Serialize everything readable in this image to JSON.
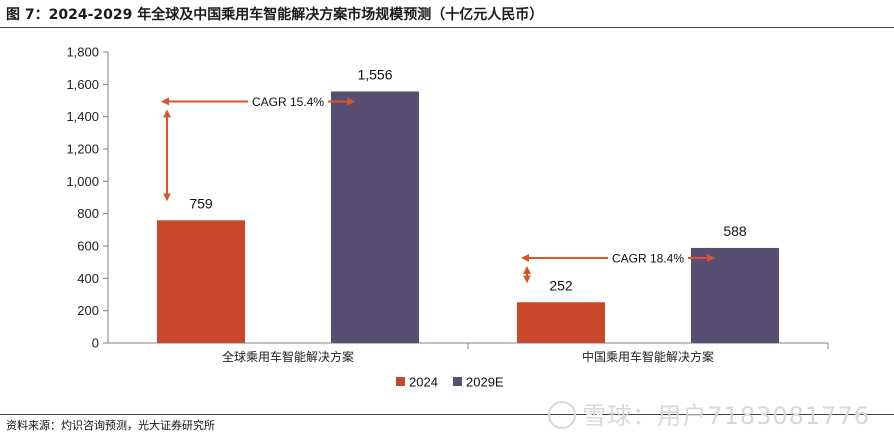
{
  "header": {
    "title": "图 7：2024-2029 年全球及中国乘用车智能解决方案市场规模预测（十亿元人民币）"
  },
  "footer": {
    "source": "资料来源：灼识咨询预测，光大证券研究所",
    "watermark": "雪球：用户7183081776"
  },
  "chart_data": {
    "type": "bar",
    "categories": [
      "全球乘用车智能解决方案",
      "中国乘用车智能解决方案"
    ],
    "series": [
      {
        "name": "2024",
        "values": [
          759,
          252
        ],
        "color": "#c9472a"
      },
      {
        "name": "2029E",
        "values": [
          1556,
          588
        ],
        "color": "#574e72"
      }
    ],
    "data_labels": [
      [
        "759",
        "252"
      ],
      [
        "1,556",
        "588"
      ]
    ],
    "ylim": [
      0,
      1800
    ],
    "yticks": [
      "0",
      "200",
      "400",
      "600",
      "800",
      "1,000",
      "1,200",
      "1,400",
      "1,600",
      "1,800"
    ],
    "annotations": [
      "CAGR 15.4%",
      "CAGR 18.4%"
    ],
    "annotation_color": "#d9532b",
    "legend_position": "bottom-center",
    "grid": false
  }
}
